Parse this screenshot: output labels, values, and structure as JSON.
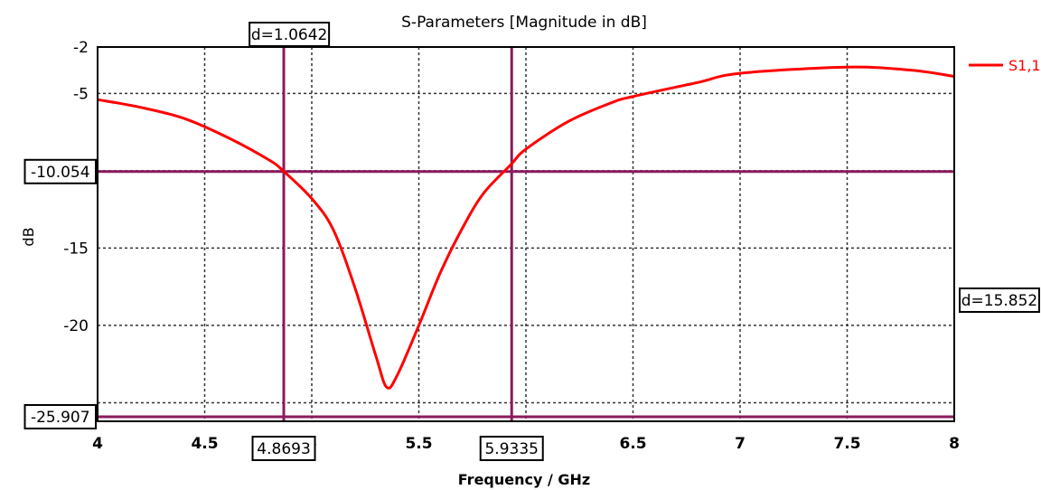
{
  "chart_data": {
    "type": "line",
    "title": "S-Parameters [Magnitude in dB]",
    "xlabel": "Frequency / GHz",
    "ylabel": "dB",
    "xlim": [
      4,
      8
    ],
    "ylim": [
      -26.2,
      -2
    ],
    "x_ticks": [
      "4",
      "4.5",
      "5",
      "5.5",
      "6",
      "6.5",
      "7",
      "7.5",
      "8"
    ],
    "y_ticks": [
      "-2",
      "-5",
      "-10",
      "-15",
      "-20",
      "-25"
    ],
    "x_tick_values": [
      4,
      4.5,
      5,
      5.5,
      6,
      6.5,
      7,
      7.5,
      8
    ],
    "y_tick_values": [
      -2,
      -5,
      -10,
      -15,
      -20,
      -25
    ],
    "grid": true,
    "legend_position": "top-right",
    "series": [
      {
        "name": "S1,1",
        "color": "#ff0000",
        "x": [
          4.0,
          4.2,
          4.4,
          4.6,
          4.8,
          4.87,
          5.0,
          5.1,
          5.2,
          5.3,
          5.35,
          5.4,
          5.5,
          5.6,
          5.7,
          5.8,
          5.93,
          6.0,
          6.2,
          6.4,
          6.5,
          6.8,
          7.0,
          7.5,
          7.8,
          8.0
        ],
        "y": [
          -5.4,
          -5.9,
          -6.6,
          -7.8,
          -9.3,
          -10.05,
          -11.8,
          -13.8,
          -17.5,
          -22.0,
          -24.0,
          -23.2,
          -20.0,
          -16.6,
          -13.8,
          -11.5,
          -9.6,
          -8.6,
          -6.8,
          -5.6,
          -5.2,
          -4.3,
          -3.7,
          -3.3,
          -3.5,
          -3.9
        ]
      }
    ],
    "markers": {
      "vertical": [
        {
          "x": 4.8693,
          "label": "4.8693"
        },
        {
          "x": 5.9335,
          "label": "5.9335"
        }
      ],
      "horizontal": [
        {
          "y": -10.054,
          "label": "-10.054"
        },
        {
          "y": -25.907,
          "label": "-25.907"
        }
      ],
      "x_delta_label": "d=1.0642",
      "y_delta_label": "d=15.852",
      "color": "#8b1a5e"
    },
    "axis_color": "#000000",
    "grid_color": "#333333"
  }
}
